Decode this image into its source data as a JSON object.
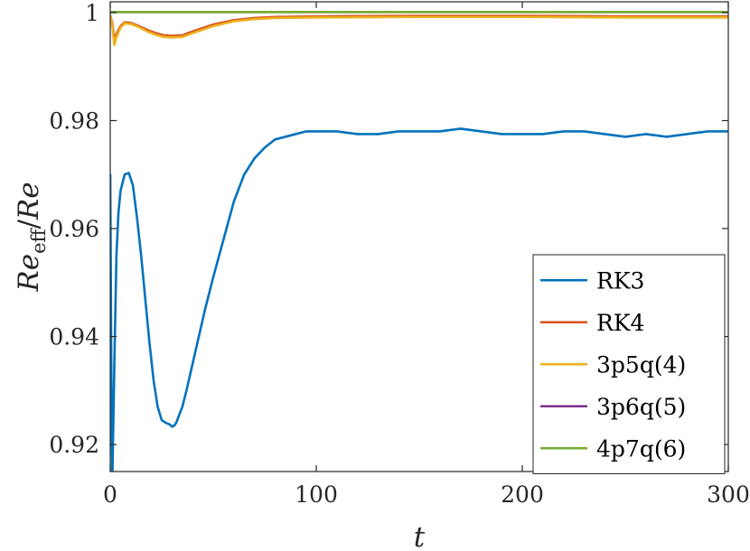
{
  "chart_data": {
    "type": "line",
    "xlabel": "t",
    "ylabel": {
      "base": "Re",
      "sub": "eff",
      "denominator": "/Re"
    },
    "xlim": [
      0,
      300
    ],
    "ylim": [
      0.915,
      1.002
    ],
    "xticks": [
      0,
      100,
      200,
      300
    ],
    "yticks": [
      0.92,
      0.94,
      0.96,
      0.98,
      1
    ],
    "ytick_labels": [
      "0.92",
      "0.94",
      "0.96",
      "0.98",
      "1"
    ],
    "grid": false,
    "legend_position": "bottom-right",
    "series": [
      {
        "name": "RK3",
        "color": "#0072BD",
        "x": [
          0,
          0.5,
          1,
          2,
          3,
          4,
          5,
          7,
          9,
          11,
          13,
          15,
          17,
          19,
          21,
          23,
          25,
          27,
          29,
          30,
          31,
          32,
          33,
          34,
          35,
          37,
          40,
          43,
          46,
          50,
          55,
          60,
          65,
          70,
          75,
          80,
          85,
          90,
          95,
          100,
          110,
          120,
          130,
          140,
          150,
          160,
          170,
          180,
          190,
          200,
          210,
          220,
          230,
          240,
          250,
          260,
          270,
          280,
          290,
          300
        ],
        "y": [
          0.97,
          0.935,
          0.913,
          0.935,
          0.955,
          0.963,
          0.967,
          0.97,
          0.9703,
          0.968,
          0.962,
          0.955,
          0.947,
          0.939,
          0.932,
          0.927,
          0.9245,
          0.924,
          0.9237,
          0.9233,
          0.9235,
          0.924,
          0.925,
          0.926,
          0.927,
          0.93,
          0.935,
          0.94,
          0.945,
          0.951,
          0.958,
          0.965,
          0.97,
          0.973,
          0.975,
          0.9765,
          0.977,
          0.9775,
          0.978,
          0.978,
          0.978,
          0.9775,
          0.9775,
          0.978,
          0.978,
          0.978,
          0.9785,
          0.978,
          0.9775,
          0.9775,
          0.9775,
          0.978,
          0.978,
          0.9775,
          0.977,
          0.9775,
          0.977,
          0.9775,
          0.978,
          0.978
        ]
      },
      {
        "name": "RK4",
        "color": "#D95319",
        "x": [
          0,
          1,
          2,
          3,
          5,
          7,
          10,
          14,
          18,
          22,
          26,
          30,
          35,
          40,
          50,
          60,
          70,
          80,
          100,
          150,
          200,
          250,
          300
        ],
        "y": [
          0.9995,
          0.998,
          0.995,
          0.996,
          0.9975,
          0.9982,
          0.9981,
          0.9975,
          0.9968,
          0.9962,
          0.9958,
          0.9957,
          0.9958,
          0.9965,
          0.9978,
          0.9986,
          0.999,
          0.9992,
          0.9993,
          0.9994,
          0.9994,
          0.9993,
          0.9993
        ]
      },
      {
        "name": "3p5q(4)",
        "color": "#EDB120",
        "x": [
          0,
          1,
          2,
          3,
          5,
          7,
          10,
          14,
          18,
          22,
          26,
          30,
          35,
          40,
          50,
          60,
          70,
          80,
          100,
          150,
          200,
          250,
          300
        ],
        "y": [
          0.9994,
          0.9975,
          0.994,
          0.9955,
          0.9972,
          0.998,
          0.9979,
          0.9973,
          0.9965,
          0.9959,
          0.9955,
          0.9954,
          0.9955,
          0.9962,
          0.9975,
          0.9984,
          0.9988,
          0.999,
          0.9991,
          0.9992,
          0.9992,
          0.9991,
          0.9991
        ]
      },
      {
        "name": "3p6q(5)",
        "color": "#7E2F8E",
        "x": [
          0,
          2,
          5,
          10,
          20,
          40,
          80,
          150,
          300
        ],
        "y": [
          1.0001,
          1.0001,
          1.0001,
          1.0001,
          1.0001,
          1.0001,
          1.0001,
          1.0001,
          1.0001
        ]
      },
      {
        "name": "4p7q(6)",
        "color": "#77AC30",
        "x": [
          0,
          2,
          5,
          10,
          20,
          40,
          80,
          150,
          300
        ],
        "y": [
          1.0001,
          1.0001,
          1.0001,
          1.0001,
          1.0001,
          1.0001,
          1.0001,
          1.0001,
          1.0001
        ]
      }
    ]
  }
}
